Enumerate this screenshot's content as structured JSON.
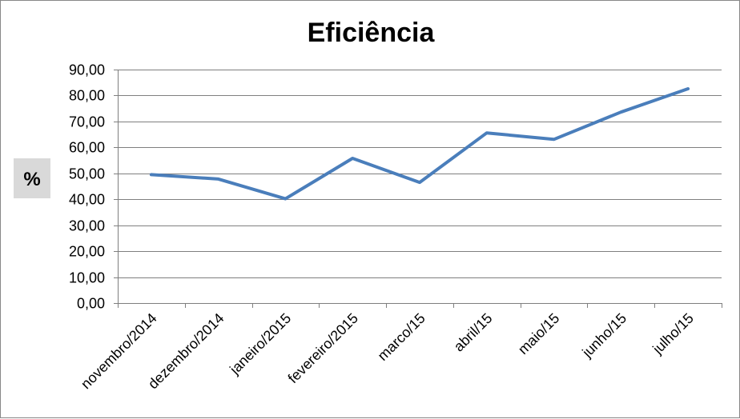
{
  "chart_data": {
    "type": "line",
    "title": "Eficiência",
    "xlabel": "",
    "ylabel": "%",
    "categories": [
      "novembro/2014",
      "dezembro/2014",
      "janeiro/2015",
      "fevereiro/2015",
      "marco/15",
      "abril/15",
      "maio/15",
      "junho/15",
      "julho/15"
    ],
    "series": [
      {
        "values": [
          49.5,
          47.8,
          40.2,
          55.8,
          46.5,
          65.6,
          63.1,
          73.6,
          82.6
        ]
      }
    ],
    "y_ticks": [
      "0,00",
      "10,00",
      "20,00",
      "30,00",
      "40,00",
      "50,00",
      "60,00",
      "70,00",
      "80,00",
      "90,00"
    ],
    "ylim": [
      0,
      90
    ],
    "grid": true,
    "legend": "none",
    "colors": {
      "line": "#4a7ebb",
      "grid": "#7f7f7f",
      "ylabel_bg": "#d9d9d9"
    }
  }
}
